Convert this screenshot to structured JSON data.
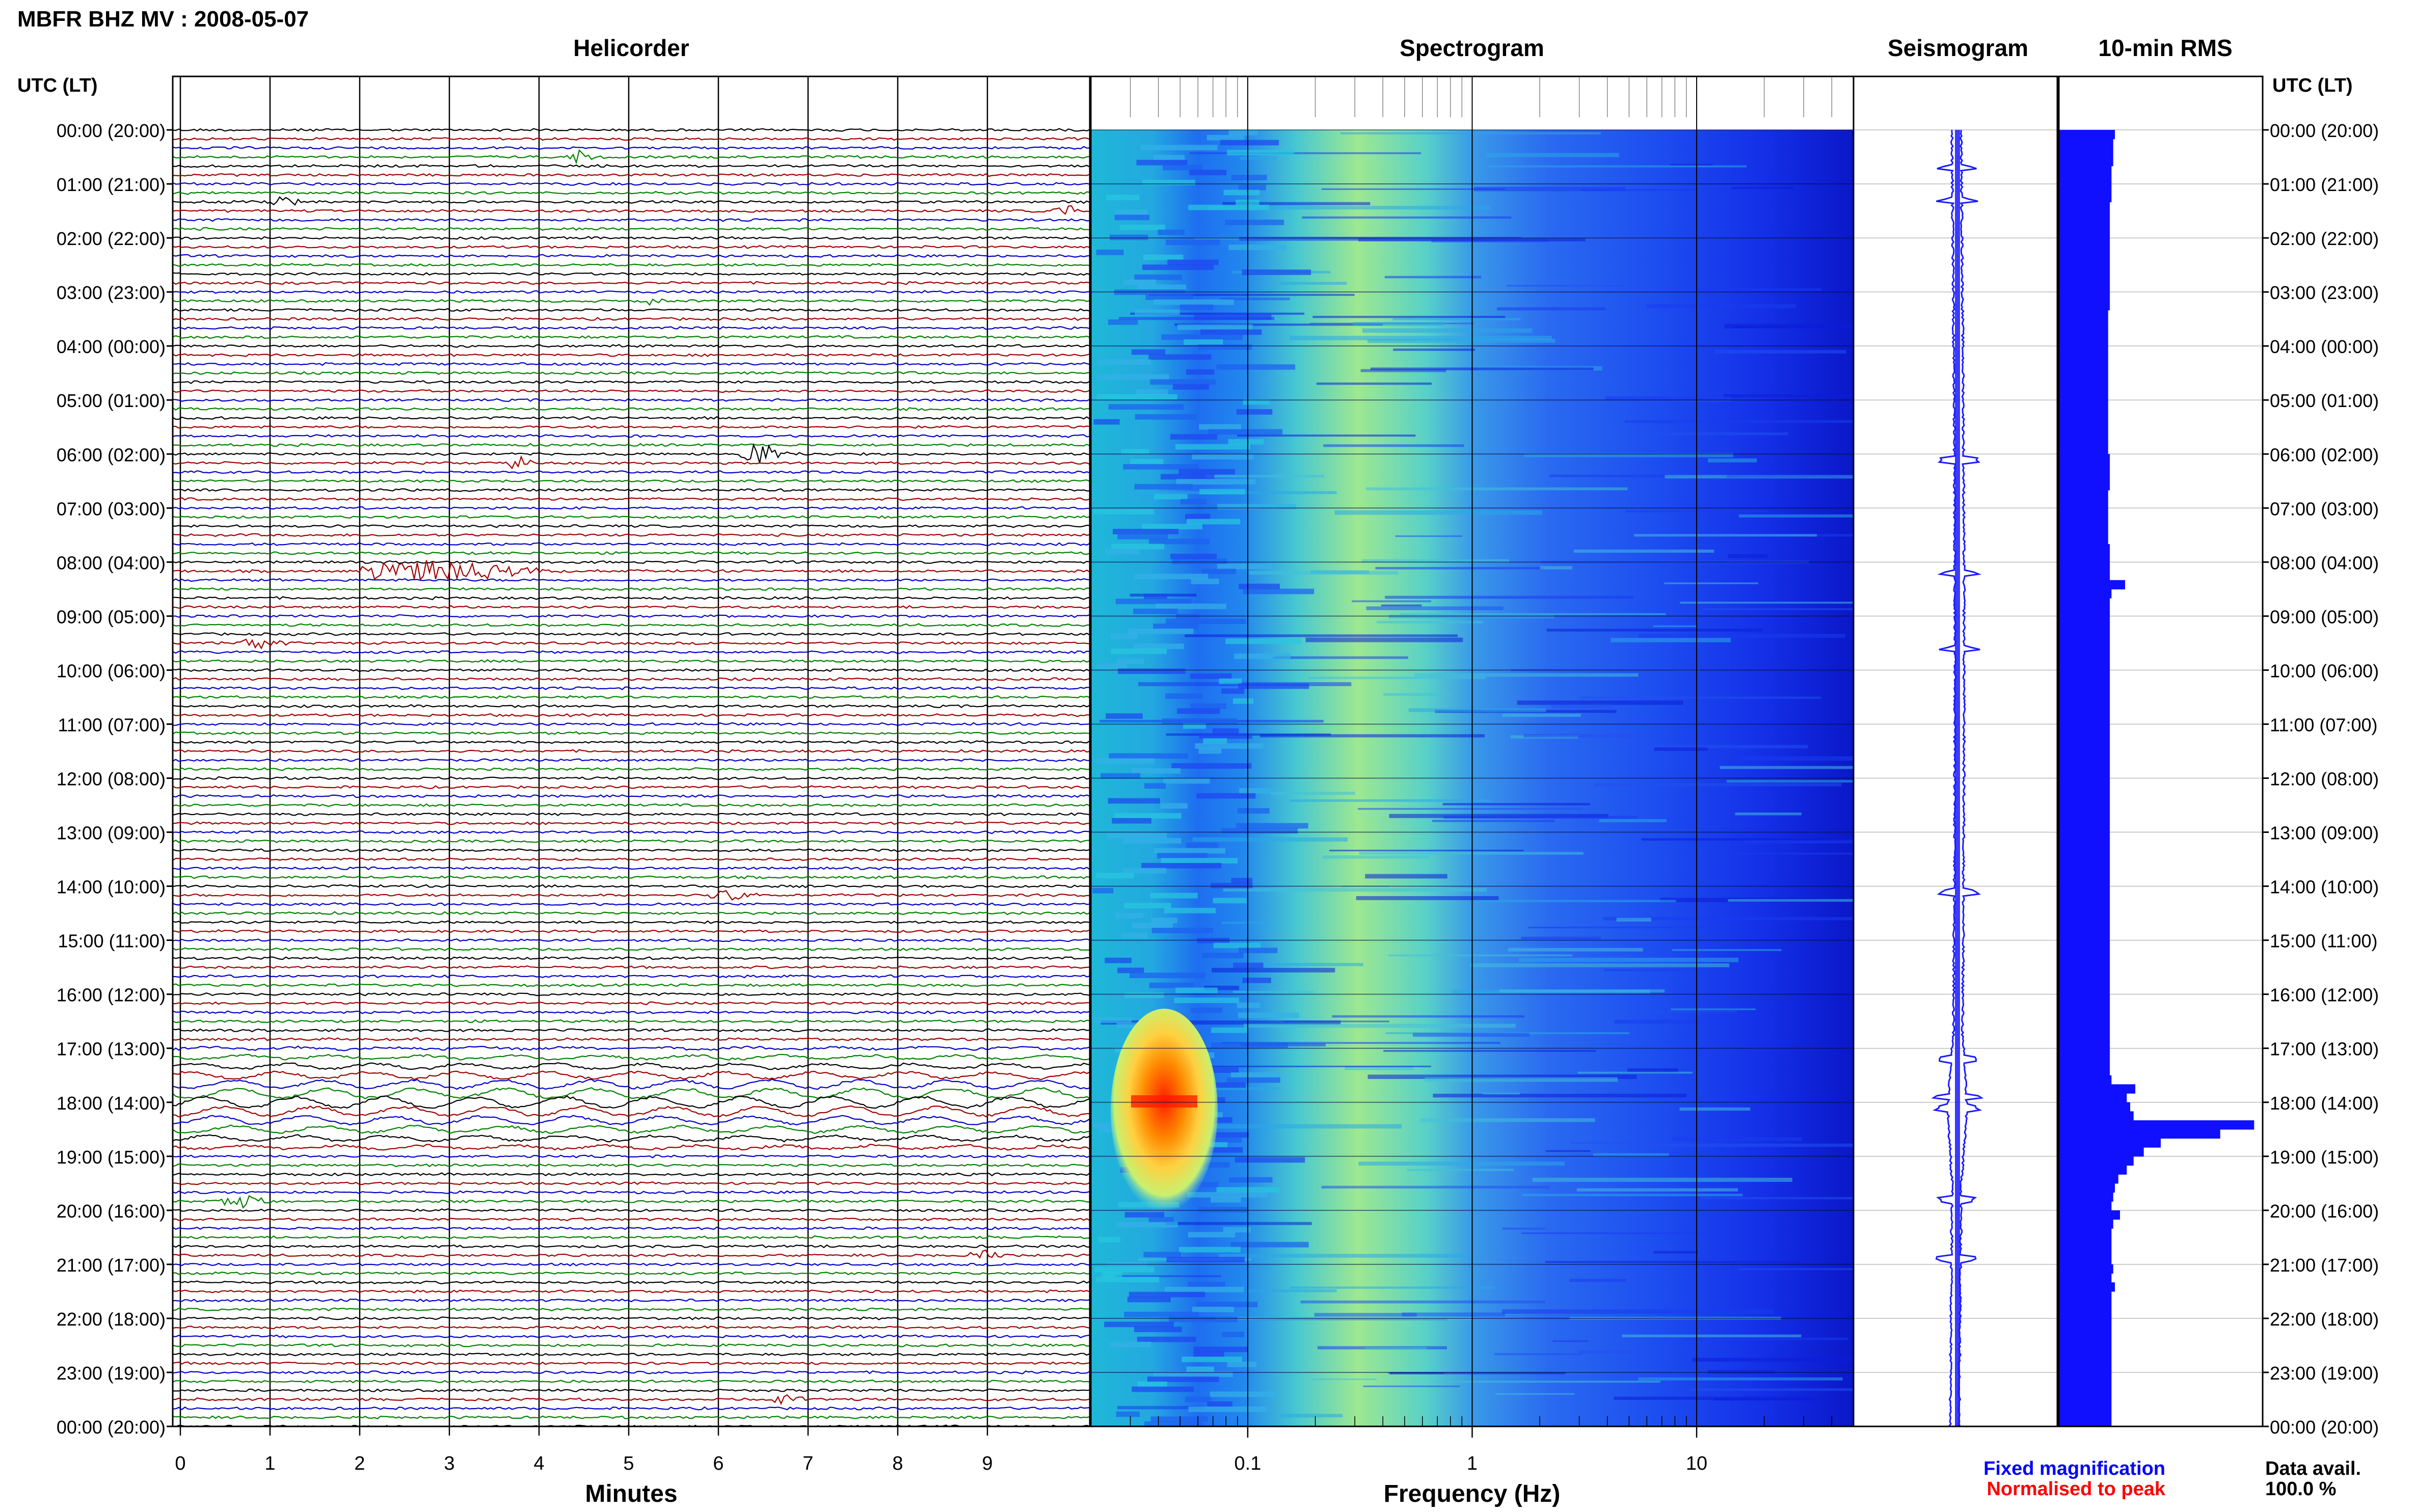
{
  "header": {
    "title": "MBFR BHZ MV : 2008-05-07",
    "panel_titles": {
      "helicorder": "Helicorder",
      "spectrogram": "Spectrogram",
      "seismogram": "Seismogram",
      "rms": "10-min RMS"
    },
    "time_axis_label_left": "UTC (LT)",
    "time_axis_label_right": "UTC (LT)"
  },
  "time_labels": [
    "00:00 (20:00)",
    "01:00 (21:00)",
    "02:00 (22:00)",
    "03:00 (23:00)",
    "04:00 (00:00)",
    "05:00 (01:00)",
    "06:00 (02:00)",
    "07:00 (03:00)",
    "08:00 (04:00)",
    "09:00 (05:00)",
    "10:00 (06:00)",
    "11:00 (07:00)",
    "12:00 (08:00)",
    "13:00 (09:00)",
    "14:00 (10:00)",
    "15:00 (11:00)",
    "16:00 (12:00)",
    "17:00 (13:00)",
    "18:00 (14:00)",
    "19:00 (15:00)",
    "20:00 (16:00)",
    "21:00 (17:00)",
    "22:00 (18:00)",
    "23:00 (19:00)",
    "00:00 (20:00)"
  ],
  "footer": {
    "legend_fixed": "Fixed magnification",
    "legend_normalised": "Normalised to peak",
    "data_avail_label": "Data avail.",
    "data_avail_value": "100.0 %"
  },
  "colors": {
    "trace_black": "#000000",
    "trace_red": "#a00000",
    "trace_blue": "#0000c8",
    "trace_green": "#008000",
    "rms_bar": "#1010ff",
    "seismogram": "#1a1aff",
    "legend_fixed": "#0000ff",
    "legend_normalised": "#ff0000"
  },
  "chart_data": [
    {
      "type": "line",
      "panel": "Helicorder",
      "xlabel": "Minutes",
      "xlim": [
        0,
        10
      ],
      "x_ticks": [
        "0",
        "1",
        "2",
        "3",
        "4",
        "5",
        "6",
        "7",
        "8",
        "9"
      ],
      "rows_per_hour": 6,
      "trace_color_cycle": [
        "black",
        "red",
        "blue",
        "green"
      ],
      "events": [
        {
          "hour": 0.5,
          "minute": 4.4,
          "amp": 3,
          "width": 0.3
        },
        {
          "hour": 1.3,
          "minute": 1.1,
          "amp": 3,
          "width": 0.3
        },
        {
          "hour": 1.5,
          "minute": 9.8,
          "amp": 3,
          "width": 0.3
        },
        {
          "hour": 3.15,
          "minute": 5.2,
          "amp": 2,
          "width": 0.2
        },
        {
          "hour": 6.0,
          "minute": 6.35,
          "amp": 5,
          "width": 0.5
        },
        {
          "hour": 6.1,
          "minute": 3.7,
          "amp": 3,
          "width": 0.3
        },
        {
          "hour": 8.15,
          "minute": 2.5,
          "amp": 6,
          "width": 1.6
        },
        {
          "hour": 9.5,
          "minute": 0.8,
          "amp": 3,
          "width": 0.4
        },
        {
          "hour": 14.15,
          "minute": 6.0,
          "amp": 3,
          "width": 0.4
        },
        {
          "hour": 19.8,
          "minute": 0.6,
          "amp": 3,
          "width": 0.5
        },
        {
          "hour": 20.85,
          "minute": 8.9,
          "amp": 3,
          "width": 0.3
        },
        {
          "hour": 23.5,
          "minute": 6.7,
          "amp": 3,
          "width": 0.3
        }
      ],
      "long_period_rows": {
        "start_hour": 17.0,
        "end_hour": 18.9
      }
    },
    {
      "type": "heatmap",
      "panel": "Spectrogram",
      "xlabel": "Frequency (Hz)",
      "x_scale": "log",
      "xlim": [
        0.02,
        50
      ],
      "x_ticks": [
        0.1,
        1,
        10
      ],
      "x_tick_labels": [
        "0.1",
        "1",
        "10"
      ],
      "hot_spot": {
        "hour_start": 17.1,
        "hour_end": 19.8,
        "freq_min": 0.03,
        "freq_max": 0.08
      }
    },
    {
      "type": "line",
      "panel": "Seismogram",
      "spikes_hours": [
        0.7,
        1.3,
        6.1,
        8.2,
        9.6,
        14.1,
        17.2,
        17.9,
        18.1,
        19.8,
        20.9
      ]
    },
    {
      "type": "bar",
      "panel": "10-min RMS",
      "orientation": "horizontal",
      "bins_per_hour": 6,
      "values": [
        33,
        32,
        32,
        32,
        31,
        31,
        31,
        31,
        30,
        30,
        30,
        30,
        30,
        30,
        30,
        30,
        30,
        30,
        30,
        30,
        29,
        29,
        29,
        29,
        29,
        29,
        29,
        29,
        29,
        29,
        29,
        29,
        29,
        29,
        29,
        29,
        30,
        30,
        30,
        30,
        29,
        29,
        29,
        29,
        29,
        29,
        30,
        30,
        30,
        30,
        39,
        31,
        30,
        30,
        30,
        30,
        30,
        30,
        30,
        30,
        30,
        30,
        30,
        30,
        30,
        30,
        30,
        30,
        30,
        30,
        30,
        30,
        30,
        30,
        30,
        30,
        30,
        30,
        30,
        30,
        30,
        30,
        30,
        30,
        30,
        30,
        30,
        30,
        30,
        30,
        30,
        30,
        30,
        30,
        30,
        30,
        30,
        30,
        30,
        30,
        30,
        30,
        30,
        30,
        30,
        31,
        45,
        40,
        42,
        44,
        115,
        95,
        60,
        50,
        44,
        40,
        35,
        33,
        32,
        31,
        36,
        32,
        31,
        31,
        31,
        31,
        32,
        31,
        33,
        31,
        31,
        31,
        31,
        31,
        31,
        31,
        31,
        31,
        31,
        31,
        31,
        31,
        31,
        31
      ],
      "ymin": 0,
      "ymax": 120
    }
  ]
}
